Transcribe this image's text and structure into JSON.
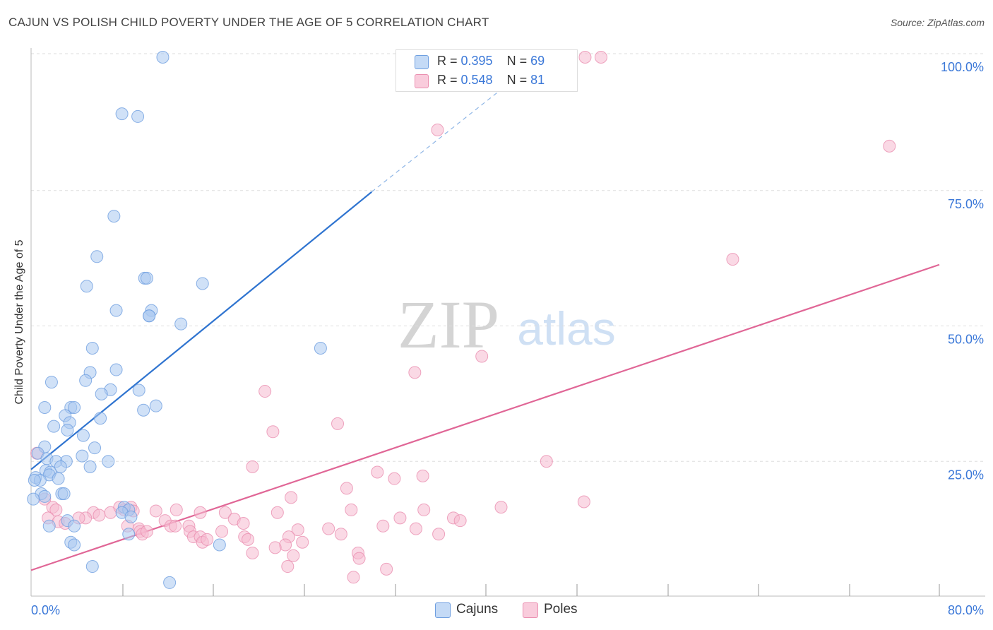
{
  "title": "CAJUN VS POLISH CHILD POVERTY UNDER THE AGE OF 5 CORRELATION CHART",
  "source": "Source: ZipAtlas.com",
  "watermark": {
    "zip": "ZIP",
    "atlas": "atlas"
  },
  "legend_top": {
    "rows": [
      {
        "r_label": "R = ",
        "r_value": "0.395",
        "n_label": "N = ",
        "n_value": "69"
      },
      {
        "r_label": "R = ",
        "r_value": "0.548",
        "n_label": "N = ",
        "n_value": "81"
      }
    ]
  },
  "legend_bottom": {
    "cajuns": "Cajuns",
    "poles": "Poles"
  },
  "colors": {
    "cajun_fill": "#a9c8f0",
    "cajun_stroke": "#6f9fe0",
    "cajun_line": "#2f74d0",
    "poles_fill": "#f6b9cf",
    "poles_stroke": "#ea8fb0",
    "poles_line": "#e06696",
    "axis_text": "#3b78d8",
    "grid": "#dddddd"
  },
  "chart_data": {
    "type": "scatter",
    "title": "CAJUN VS POLISH CHILD POVERTY UNDER THE AGE OF 5 CORRELATION CHART",
    "xlabel": "",
    "ylabel": "Child Poverty Under the Age of 5",
    "xlim": [
      0,
      80
    ],
    "ylim": [
      0,
      100
    ],
    "x_tick_labels": [
      "0.0%",
      "80.0%"
    ],
    "y_tick_labels": [
      "25.0%",
      "50.0%",
      "75.0%",
      "100.0%"
    ],
    "y_ticks": [
      25,
      50,
      75,
      100
    ],
    "series": [
      {
        "name": "Cajuns",
        "r": 0.395,
        "n": 69,
        "trend": {
          "x0": 0,
          "y0": 23.5,
          "x1": 30,
          "y1": 75,
          "dash_x1": 45,
          "dash_y1": 100
        },
        "points": [
          [
            11.6,
            100
          ],
          [
            8,
            89.5
          ],
          [
            9.4,
            89
          ],
          [
            7.3,
            70.5
          ],
          [
            5.8,
            63
          ],
          [
            4.9,
            57.5
          ],
          [
            10,
            59
          ],
          [
            10.2,
            59
          ],
          [
            15.1,
            58
          ],
          [
            7.5,
            53
          ],
          [
            10.6,
            53
          ],
          [
            10.4,
            52
          ],
          [
            10.4,
            52
          ],
          [
            13.2,
            50.5
          ],
          [
            5.4,
            46
          ],
          [
            25.5,
            46
          ],
          [
            5.2,
            41.5
          ],
          [
            7.5,
            42
          ],
          [
            4.8,
            40
          ],
          [
            1.8,
            39.7
          ],
          [
            7,
            38.3
          ],
          [
            9.5,
            38.2
          ],
          [
            6.2,
            37.5
          ],
          [
            11,
            35.3
          ],
          [
            1.2,
            35
          ],
          [
            3.5,
            35
          ],
          [
            3.8,
            35
          ],
          [
            9.9,
            34.5
          ],
          [
            3,
            33.5
          ],
          [
            6.1,
            33
          ],
          [
            3.4,
            32.2
          ],
          [
            2,
            31.5
          ],
          [
            3.2,
            30.8
          ],
          [
            4.6,
            29.8
          ],
          [
            1.2,
            27.7
          ],
          [
            5.6,
            27.5
          ],
          [
            0.6,
            26.5
          ],
          [
            4.5,
            26
          ],
          [
            1.4,
            25.5
          ],
          [
            3.1,
            25
          ],
          [
            2.2,
            25
          ],
          [
            6.8,
            25
          ],
          [
            5.2,
            24
          ],
          [
            2.6,
            24
          ],
          [
            1.3,
            23.3
          ],
          [
            1.7,
            23
          ],
          [
            1.6,
            22.5
          ],
          [
            0.4,
            22
          ],
          [
            2.4,
            21.8
          ],
          [
            0.8,
            21.5
          ],
          [
            0.3,
            21.5
          ],
          [
            0.9,
            19
          ],
          [
            2.7,
            19
          ],
          [
            2.9,
            19
          ],
          [
            1.2,
            18.5
          ],
          [
            0.2,
            18
          ],
          [
            8.2,
            16.5
          ],
          [
            8.6,
            16
          ],
          [
            8,
            15.5
          ],
          [
            8.8,
            14.7
          ],
          [
            3.2,
            14
          ],
          [
            3.8,
            13
          ],
          [
            1.6,
            13
          ],
          [
            8.6,
            11.5
          ],
          [
            3.5,
            10
          ],
          [
            3.8,
            9.5
          ],
          [
            16.6,
            9.5
          ],
          [
            5.4,
            5.5
          ],
          [
            12.2,
            2.5
          ]
        ]
      },
      {
        "name": "Poles",
        "r": 0.548,
        "n": 81,
        "trend": {
          "x0": 0,
          "y0": 4.8,
          "x1": 80,
          "y1": 61.5
        },
        "points": [
          [
            48.8,
            100
          ],
          [
            50.2,
            100
          ],
          [
            35.8,
            86.5
          ],
          [
            75.6,
            83.5
          ],
          [
            61.8,
            62.5
          ],
          [
            39.7,
            44.5
          ],
          [
            33.8,
            41.5
          ],
          [
            20.6,
            38
          ],
          [
            27,
            32
          ],
          [
            21.3,
            30.5
          ],
          [
            0.5,
            26.5
          ],
          [
            45.4,
            25
          ],
          [
            19.5,
            24
          ],
          [
            30.5,
            23
          ],
          [
            34.5,
            22.3
          ],
          [
            32,
            21.8
          ],
          [
            27.8,
            20
          ],
          [
            1.2,
            18
          ],
          [
            22.9,
            18.3
          ],
          [
            48.7,
            17.5
          ],
          [
            1.9,
            16.5
          ],
          [
            2.2,
            16
          ],
          [
            41.4,
            16.5
          ],
          [
            7,
            15.5
          ],
          [
            8.2,
            16
          ],
          [
            7.8,
            16.5
          ],
          [
            8.8,
            16.5
          ],
          [
            9,
            15.8
          ],
          [
            11,
            15.8
          ],
          [
            12.8,
            16
          ],
          [
            14.9,
            15.5
          ],
          [
            17.1,
            15.5
          ],
          [
            21.7,
            15.5
          ],
          [
            28.2,
            16
          ],
          [
            34.6,
            16
          ],
          [
            5.5,
            15.5
          ],
          [
            6,
            15
          ],
          [
            4.8,
            14.5
          ],
          [
            1.5,
            14.5
          ],
          [
            2.4,
            13.8
          ],
          [
            3,
            13.5
          ],
          [
            4.2,
            14.5
          ],
          [
            11.8,
            14
          ],
          [
            17.9,
            14.3
          ],
          [
            18.7,
            13.5
          ],
          [
            13.9,
            13
          ],
          [
            8.5,
            13
          ],
          [
            12.3,
            13
          ],
          [
            12.7,
            13
          ],
          [
            9.5,
            12.5
          ],
          [
            14,
            12
          ],
          [
            16.8,
            12
          ],
          [
            31,
            13
          ],
          [
            32.5,
            14.5
          ],
          [
            37.2,
            14.5
          ],
          [
            37.8,
            14
          ],
          [
            23.5,
            12.3
          ],
          [
            26.2,
            12.5
          ],
          [
            27.3,
            11.5
          ],
          [
            33.9,
            12.5
          ],
          [
            9.6,
            12
          ],
          [
            9.8,
            11.5
          ],
          [
            10.2,
            12
          ],
          [
            14.3,
            11
          ],
          [
            14.9,
            11
          ],
          [
            22.7,
            11
          ],
          [
            15.1,
            10
          ],
          [
            15.5,
            10.5
          ],
          [
            18.8,
            11
          ],
          [
            19.1,
            10.5
          ],
          [
            23.9,
            10
          ],
          [
            22.4,
            9.5
          ],
          [
            21.5,
            9
          ],
          [
            19.5,
            8
          ],
          [
            28.8,
            8
          ],
          [
            23.1,
            7.5
          ],
          [
            28.9,
            7
          ],
          [
            22.6,
            5.5
          ],
          [
            31.3,
            5
          ],
          [
            28.4,
            3.5
          ],
          [
            35.9,
            11.5
          ]
        ]
      }
    ]
  }
}
